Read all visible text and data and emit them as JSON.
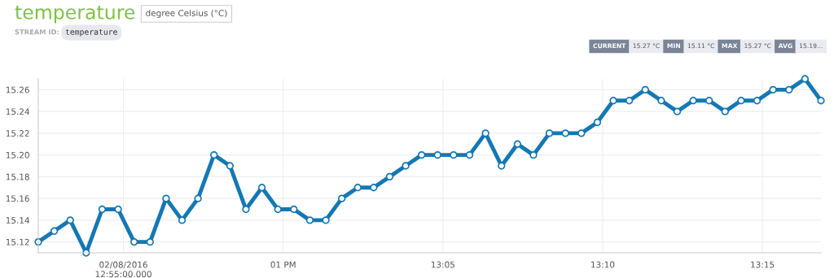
{
  "chart_data": {
    "type": "line",
    "title": "temperature",
    "subtitle": "degree Celsius (°C)",
    "annotations": [
      "STREAM ID:",
      "temperature",
      "CURRENT",
      "15.27 °C",
      "MIN",
      "15.11 °C",
      "MAX",
      "15.27 °C",
      "AVG",
      "15.19..."
    ],
    "x": [
      "2016-02-08T12:52:20",
      "2016-02-08T12:52:50",
      "2016-02-08T12:53:20",
      "2016-02-08T12:53:50",
      "2016-02-08T12:54:20",
      "2016-02-08T12:54:50",
      "2016-02-08T12:55:20",
      "2016-02-08T12:55:50",
      "2016-02-08T12:56:20",
      "2016-02-08T12:56:50",
      "2016-02-08T12:57:20",
      "2016-02-08T12:57:50",
      "2016-02-08T12:58:20",
      "2016-02-08T12:58:50",
      "2016-02-08T12:59:20",
      "2016-02-08T12:59:50",
      "2016-02-08T13:00:20",
      "2016-02-08T13:00:50",
      "2016-02-08T13:01:20",
      "2016-02-08T13:01:50",
      "2016-02-08T13:02:20",
      "2016-02-08T13:02:50",
      "2016-02-08T13:03:20",
      "2016-02-08T13:03:50",
      "2016-02-08T13:04:20",
      "2016-02-08T13:04:50",
      "2016-02-08T13:05:20",
      "2016-02-08T13:05:50",
      "2016-02-08T13:06:20",
      "2016-02-08T13:06:50",
      "2016-02-08T13:07:20",
      "2016-02-08T13:07:50",
      "2016-02-08T13:08:20",
      "2016-02-08T13:08:50",
      "2016-02-08T13:09:20",
      "2016-02-08T13:09:50",
      "2016-02-08T13:10:20",
      "2016-02-08T13:10:50",
      "2016-02-08T13:11:20",
      "2016-02-08T13:11:50",
      "2016-02-08T13:12:20",
      "2016-02-08T13:12:50",
      "2016-02-08T13:13:20",
      "2016-02-08T13:13:50",
      "2016-02-08T13:14:20",
      "2016-02-08T13:14:50",
      "2016-02-08T13:15:20",
      "2016-02-08T13:15:50",
      "2016-02-08T13:16:20",
      "2016-02-08T13:16:50"
    ],
    "series": [
      {
        "color": "#1478b4",
        "values": [
          15.12,
          15.13,
          15.14,
          15.11,
          15.15,
          15.15,
          15.12,
          15.12,
          15.16,
          15.14,
          15.16,
          15.2,
          15.19,
          15.15,
          15.17,
          15.15,
          15.15,
          15.14,
          15.14,
          15.16,
          15.17,
          15.17,
          15.18,
          15.19,
          15.2,
          15.2,
          15.2,
          15.2,
          15.22,
          15.19,
          15.21,
          15.2,
          15.22,
          15.22,
          15.22,
          15.23,
          15.25,
          15.25,
          15.26,
          15.25,
          15.24,
          15.25,
          15.25,
          15.24,
          15.25,
          15.25,
          15.26,
          15.26,
          15.27,
          15.25
        ]
      }
    ],
    "xlim": [
      "2016-02-08T12:52:20",
      "2016-02-08T13:16:50"
    ],
    "xticks": [
      {
        "value": "2016-02-08T12:55",
        "label": "02/08/2016\n12:55:00.000"
      },
      {
        "value": "2016-02-08T13:00",
        "label": "01 PM"
      },
      {
        "value": "2016-02-08T13:05",
        "label": "13:05"
      },
      {
        "value": "2016-02-08T13:10",
        "label": "13:10"
      },
      {
        "value": "2016-02-08T13:15",
        "label": "13:15"
      }
    ],
    "ylim": [
      15.11,
      15.27
    ],
    "yticks": [
      15.12,
      15.14,
      15.16,
      15.18,
      {
        "value": 15.2,
        "label": "15.20"
      },
      15.22,
      15.24,
      15.26
    ],
    "grid": true,
    "marker": "circle",
    "line_style": "solid",
    "legend": false
  }
}
